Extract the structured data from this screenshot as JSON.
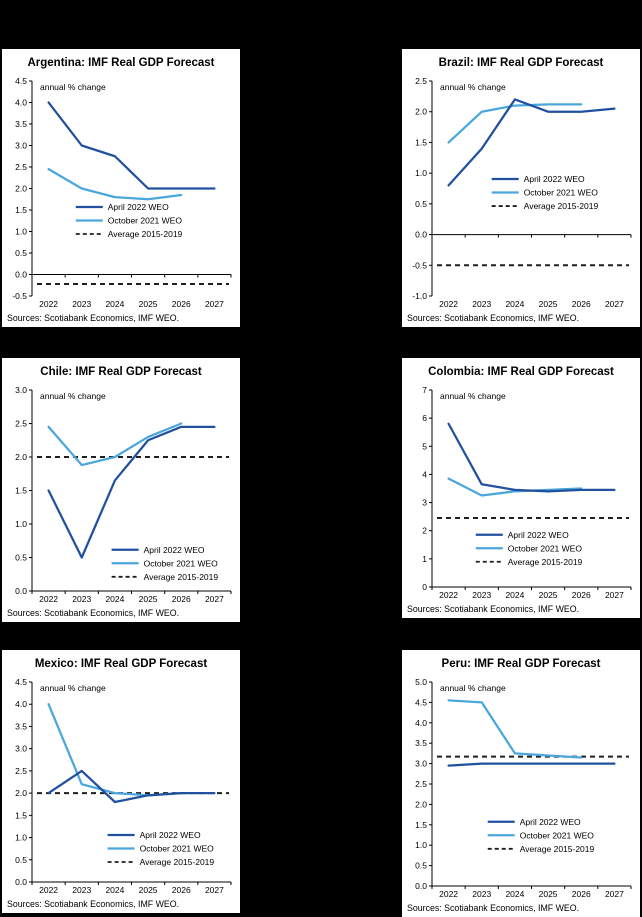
{
  "page": {
    "background_color": "#000000",
    "panel_color": "#FFFFFF"
  },
  "colors": {
    "april_2022_weo": "#21519E",
    "october_2021_weo": "#4BA7DB",
    "average_2015_2019": "#1F1F1F",
    "axis": "#000000"
  },
  "chart_data": [
    {
      "type": "line",
      "country": "Argentina",
      "title": "Argentina: IMF Real GDP Forecast",
      "unit_note": "annual % change",
      "x": [
        2022,
        2023,
        2024,
        2025,
        2026,
        2027
      ],
      "series": [
        {
          "name": "April 2022 WEO",
          "color_key": "april_2022_weo",
          "values": [
            4.0,
            3.0,
            2.75,
            2.0,
            2.0,
            2.0
          ]
        },
        {
          "name": "October 2021 WEO",
          "color_key": "october_2021_weo",
          "values": [
            2.45,
            2.0,
            1.8,
            1.75,
            1.85,
            null
          ]
        }
      ],
      "average_line": {
        "name": "Average 2015-2019",
        "value": -0.22,
        "color_key": "average_2015_2019"
      },
      "ylim": [
        -0.5,
        4.5
      ],
      "ytick_step": 0.5,
      "ytick_decimals": 1,
      "grid": false,
      "legend_pos": {
        "fx": 0.22,
        "fy": 0.6
      },
      "sources": "Sources: Scotiabank Economics, IMF WEO."
    },
    {
      "type": "line",
      "country": "Brazil",
      "title": "Brazil: IMF Real GDP Forecast",
      "unit_note": "annual % change",
      "x": [
        2022,
        2023,
        2024,
        2025,
        2026,
        2027
      ],
      "series": [
        {
          "name": "April 2022 WEO",
          "color_key": "april_2022_weo",
          "values": [
            0.8,
            1.4,
            2.2,
            2.0,
            2.0,
            2.05
          ]
        },
        {
          "name": "October 2021 WEO",
          "color_key": "october_2021_weo",
          "values": [
            1.5,
            2.0,
            2.1,
            2.12,
            2.12,
            null
          ]
        }
      ],
      "average_line": {
        "name": "Average 2015-2019",
        "value": -0.5,
        "color_key": "average_2015_2019"
      },
      "ylim": [
        -1.0,
        2.5
      ],
      "ytick_step": 0.5,
      "ytick_decimals": 1,
      "grid": false,
      "legend_pos": {
        "fx": 0.3,
        "fy": 0.47
      },
      "sources": "Sources: Scotiabank Economics, IMF WEO."
    },
    {
      "type": "line",
      "country": "Chile",
      "title": "Chile: IMF Real GDP Forecast",
      "unit_note": "annual % change",
      "x": [
        2022,
        2023,
        2024,
        2025,
        2026,
        2027
      ],
      "series": [
        {
          "name": "April 2022 WEO",
          "color_key": "april_2022_weo",
          "values": [
            1.5,
            0.5,
            1.65,
            2.25,
            2.45,
            2.45
          ]
        },
        {
          "name": "October 2021 WEO",
          "color_key": "october_2021_weo",
          "values": [
            2.45,
            1.88,
            2.0,
            2.3,
            2.5,
            null
          ]
        }
      ],
      "average_line": {
        "name": "Average 2015-2019",
        "value": 2.0,
        "color_key": "average_2015_2019"
      },
      "ylim": [
        0.0,
        3.0
      ],
      "ytick_step": 0.5,
      "ytick_decimals": 1,
      "grid": false,
      "legend_pos": {
        "fx": 0.4,
        "fy": 0.81
      },
      "sources": "Sources: Scotiabank Economics, IMF WEO."
    },
    {
      "type": "line",
      "country": "Colombia",
      "title": "Colombia: IMF Real GDP Forecast",
      "unit_note": "annual % change",
      "x": [
        2022,
        2023,
        2024,
        2025,
        2026,
        2027
      ],
      "series": [
        {
          "name": "April 2022 WEO",
          "color_key": "april_2022_weo",
          "values": [
            5.8,
            3.65,
            3.45,
            3.4,
            3.45,
            3.45
          ]
        },
        {
          "name": "October 2021 WEO",
          "color_key": "october_2021_weo",
          "values": [
            3.85,
            3.25,
            3.4,
            3.45,
            3.5,
            null
          ]
        }
      ],
      "average_line": {
        "name": "Average 2015-2019",
        "value": 2.45,
        "color_key": "average_2015_2019"
      },
      "ylim": [
        0,
        7
      ],
      "ytick_step": 1,
      "ytick_decimals": 0,
      "grid": false,
      "legend_pos": {
        "fx": 0.22,
        "fy": 0.75
      },
      "sources": "Sources: Scotiabank Economics, IMF WEO."
    },
    {
      "type": "line",
      "country": "Mexico",
      "title": "Mexico: IMF Real GDP Forecast",
      "unit_note": "annual % change",
      "x": [
        2022,
        2023,
        2024,
        2025,
        2026,
        2027
      ],
      "series": [
        {
          "name": "April 2022 WEO",
          "color_key": "april_2022_weo",
          "values": [
            2.0,
            2.5,
            1.8,
            1.95,
            2.0,
            2.0
          ]
        },
        {
          "name": "October 2021 WEO",
          "color_key": "october_2021_weo",
          "values": [
            4.0,
            2.2,
            2.0,
            1.95,
            2.0,
            null
          ]
        }
      ],
      "average_line": {
        "name": "Average 2015-2019",
        "value": 2.0,
        "color_key": "average_2015_2019"
      },
      "ylim": [
        0.0,
        4.5
      ],
      "ytick_step": 0.5,
      "ytick_decimals": 1,
      "grid": false,
      "legend_pos": {
        "fx": 0.38,
        "fy": 0.78
      },
      "sources": "Sources: Scotiabank Economics, IMF WEO."
    },
    {
      "type": "line",
      "country": "Peru",
      "title": "Peru: IMF Real GDP Forecast",
      "unit_note": "annual % change",
      "x": [
        2022,
        2023,
        2024,
        2025,
        2026,
        2027
      ],
      "series": [
        {
          "name": "April 2022 WEO",
          "color_key": "april_2022_weo",
          "values": [
            2.95,
            3.0,
            3.0,
            3.0,
            3.0,
            3.0
          ]
        },
        {
          "name": "October 2021 WEO",
          "color_key": "october_2021_weo",
          "values": [
            4.55,
            4.5,
            3.25,
            3.2,
            3.15,
            null
          ]
        }
      ],
      "average_line": {
        "name": "Average 2015-2019",
        "value": 3.17,
        "color_key": "average_2015_2019"
      },
      "ylim": [
        0.0,
        5.0
      ],
      "ytick_step": 0.5,
      "ytick_decimals": 1,
      "grid": false,
      "legend_pos": {
        "fx": 0.28,
        "fy": 0.7
      },
      "sources": "Sources: Scotiabank Economics, IMF WEO."
    }
  ]
}
